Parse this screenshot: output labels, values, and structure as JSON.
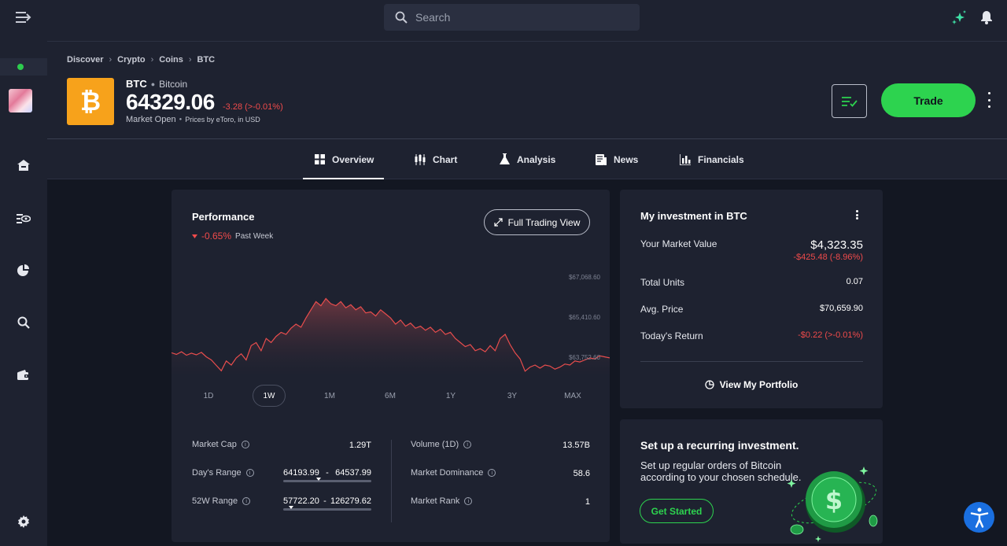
{
  "search": {
    "placeholder": "Search"
  },
  "breadcrumb": [
    "Discover",
    "Crypto",
    "Coins",
    "BTC"
  ],
  "instrument": {
    "symbol": "BTC",
    "name": "Bitcoin",
    "price": "64329.06",
    "change": "-3.28 (>-0.01%)",
    "market_status": "Market Open",
    "price_source": "Prices by eToro, in USD"
  },
  "actions": {
    "trade": "Trade"
  },
  "tabs": [
    {
      "label": "Overview",
      "icon": "grid-icon",
      "active": true
    },
    {
      "label": "Chart",
      "icon": "candlestick-icon"
    },
    {
      "label": "Analysis",
      "icon": "flask-icon"
    },
    {
      "label": "News",
      "icon": "newspaper-icon"
    },
    {
      "label": "Financials",
      "icon": "bar-chart-icon"
    }
  ],
  "performance": {
    "title": "Performance",
    "change": "-0.65%",
    "period": "Past Week",
    "full_view_button": "Full Trading View",
    "y_labels": [
      "$67,068.60",
      "$65,410.60",
      "$63,752.60"
    ],
    "ranges": [
      "1D",
      "1W",
      "1M",
      "6M",
      "1Y",
      "3Y",
      "MAX"
    ],
    "active_range": "1W",
    "stats": {
      "market_cap": {
        "label": "Market Cap",
        "value": "1.29T"
      },
      "days_range": {
        "label": "Day's Range",
        "low": "64193.99",
        "sep": "-",
        "high": "64537.99",
        "position": 0.4
      },
      "w52_range": {
        "label": "52W Range",
        "low": "57722.20",
        "sep": "-",
        "high": "126279.62",
        "position": 0.09
      },
      "volume": {
        "label": "Volume (1D)",
        "value": "13.57B"
      },
      "dominance": {
        "label": "Market Dominance",
        "value": "58.6"
      },
      "rank": {
        "label": "Market Rank",
        "value": "1"
      }
    }
  },
  "chart_data": {
    "type": "area",
    "title": "",
    "yticks": [
      67068.6,
      65410.6,
      63752.6
    ],
    "ylim": [
      63400,
      68400
    ],
    "series": [
      {
        "values": [
          64500,
          64420,
          64550,
          64380,
          64480,
          64400,
          64520,
          64300,
          64150,
          63880,
          63620,
          64100,
          63900,
          64250,
          64450,
          64150,
          64850,
          65000,
          64600,
          65200,
          65000,
          65300,
          65500,
          65400,
          65700,
          65900,
          65750,
          66200,
          66600,
          67000,
          66800,
          67150,
          66900,
          66800,
          67000,
          66700,
          66850,
          66600,
          66750,
          66450,
          66500,
          66300,
          66600,
          66400,
          66200,
          65900,
          66100,
          65800,
          65950,
          65700,
          65800,
          65600,
          65750,
          65500,
          65650,
          65400,
          65500,
          65200,
          65000,
          64800,
          64900,
          64600,
          64700,
          64550,
          64850,
          64600,
          65200,
          65400,
          64900,
          64500,
          64200,
          63600,
          63800,
          63900,
          63750,
          63900,
          63850,
          63700,
          63800,
          63950,
          63900,
          64100,
          64050,
          64150,
          64250,
          64200,
          64350,
          64300,
          64250
        ]
      }
    ]
  },
  "investment": {
    "title": "My investment in BTC",
    "market_value_label": "Your Market Value",
    "market_value": "$4,323.35",
    "market_value_change": "-$425.48 (-8.96%)",
    "total_units_label": "Total Units",
    "total_units": "0.07",
    "avg_price_label": "Avg. Price",
    "avg_price": "$70,659.90",
    "todays_return_label": "Today's Return",
    "todays_return": "-$0.22 (>-0.01%)",
    "view_portfolio": "View My Portfolio"
  },
  "recurring": {
    "title": "Set up a recurring investment.",
    "description": "Set up regular orders of Bitcoin according to your chosen schedule.",
    "button": "Get Started"
  },
  "colors": {
    "accent": "#2dd34f",
    "negative": "#f04b4b",
    "bitcoin": "#f7a21b",
    "background": "#131722",
    "panel": "#1e2230"
  }
}
